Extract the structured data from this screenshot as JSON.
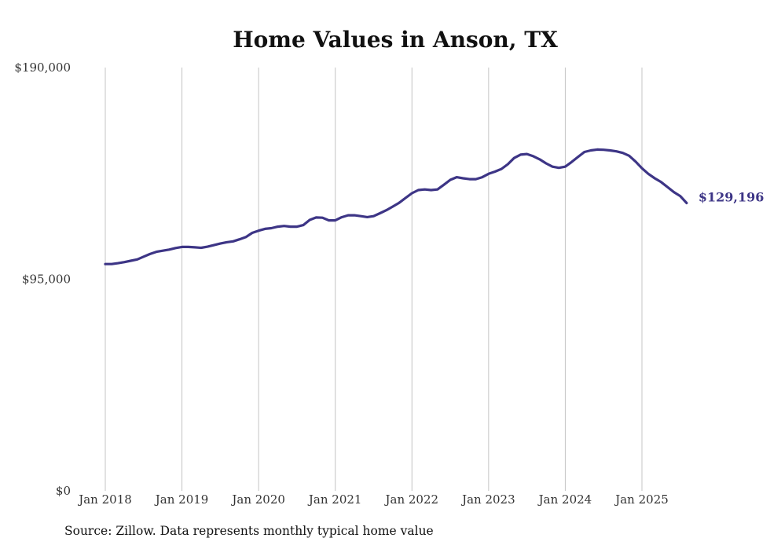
{
  "chart_data": {
    "type": "line",
    "title": "Home Values in Anson, TX",
    "xlabel": "",
    "ylabel": "",
    "ylim": [
      0,
      190000
    ],
    "y_ticks": [
      {
        "value": 0,
        "label": "$0"
      },
      {
        "value": 95000,
        "label": "$95,000"
      },
      {
        "value": 190000,
        "label": "$190,000"
      }
    ],
    "x_ticks": [
      {
        "value": 2018,
        "label": "Jan 2018"
      },
      {
        "value": 2019,
        "label": "Jan 2019"
      },
      {
        "value": 2020,
        "label": "Jan 2020"
      },
      {
        "value": 2021,
        "label": "Jan 2021"
      },
      {
        "value": 2022,
        "label": "Jan 2022"
      },
      {
        "value": 2023,
        "label": "Jan 2023"
      },
      {
        "value": 2024,
        "label": "Jan 2024"
      },
      {
        "value": 2025,
        "label": "Jan 2025"
      }
    ],
    "xlim": [
      2018,
      2025.58
    ],
    "grid": "vertical",
    "line_color": "#3d3586",
    "series": [
      {
        "name": "Typical home value",
        "x": [
          2018.0,
          2018.083,
          2018.167,
          2018.25,
          2018.333,
          2018.417,
          2018.5,
          2018.583,
          2018.667,
          2018.75,
          2018.833,
          2018.917,
          2019.0,
          2019.083,
          2019.167,
          2019.25,
          2019.333,
          2019.417,
          2019.5,
          2019.583,
          2019.667,
          2019.75,
          2019.833,
          2019.917,
          2020.0,
          2020.083,
          2020.167,
          2020.25,
          2020.333,
          2020.417,
          2020.5,
          2020.583,
          2020.667,
          2020.75,
          2020.833,
          2020.917,
          2021.0,
          2021.083,
          2021.167,
          2021.25,
          2021.333,
          2021.417,
          2021.5,
          2021.583,
          2021.667,
          2021.75,
          2021.833,
          2021.917,
          2022.0,
          2022.083,
          2022.167,
          2022.25,
          2022.333,
          2022.417,
          2022.5,
          2022.583,
          2022.667,
          2022.75,
          2022.833,
          2022.917,
          2023.0,
          2023.083,
          2023.167,
          2023.25,
          2023.333,
          2023.417,
          2023.5,
          2023.583,
          2023.667,
          2023.75,
          2023.833,
          2023.917,
          2024.0,
          2024.083,
          2024.167,
          2024.25,
          2024.333,
          2024.417,
          2024.5,
          2024.583,
          2024.667,
          2024.75,
          2024.833,
          2024.917,
          2025.0,
          2025.083,
          2025.167,
          2025.25,
          2025.333,
          2025.417,
          2025.5,
          2025.583
        ],
        "values": [
          101800,
          101800,
          102200,
          102700,
          103300,
          103900,
          105100,
          106300,
          107300,
          107800,
          108300,
          109000,
          109500,
          109500,
          109300,
          109100,
          109600,
          110300,
          111000,
          111600,
          112000,
          112900,
          113900,
          115800,
          116800,
          117600,
          117900,
          118600,
          118900,
          118600,
          118600,
          119300,
          121600,
          122700,
          122600,
          121400,
          121400,
          122800,
          123700,
          123700,
          123300,
          122900,
          123300,
          124600,
          126000,
          127600,
          129300,
          131500,
          133600,
          135000,
          135300,
          135000,
          135300,
          137400,
          139600,
          140800,
          140300,
          139900,
          139900,
          140800,
          142300,
          143300,
          144500,
          146600,
          149400,
          150900,
          151200,
          150200,
          148800,
          147000,
          145500,
          145000,
          145500,
          147600,
          149900,
          152100,
          152800,
          153200,
          153100,
          152800,
          152400,
          151700,
          150400,
          147800,
          144800,
          142300,
          140300,
          138600,
          136400,
          134100,
          132300,
          129196
        ]
      }
    ],
    "end_label": "$129,196",
    "source": "Source: Zillow. Data represents monthly typical home value"
  }
}
